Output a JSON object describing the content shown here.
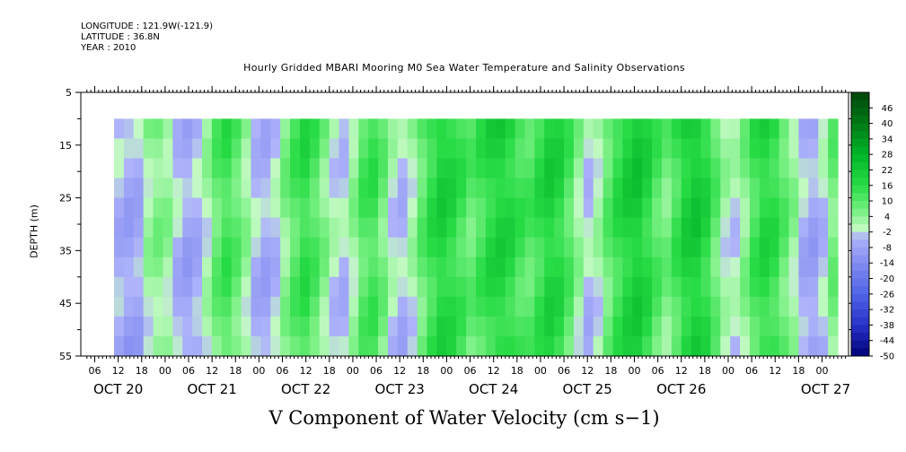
{
  "header": {
    "longitude": "LONGITUDE : 121.9W(-121.9)",
    "latitude": "LATITUDE : 36.8N",
    "year": "YEAR : 2010"
  },
  "chart_data": {
    "type": "heatmap",
    "title": "Hourly Gridded MBARI Mooring M0 Sea Water Temperature and Salinity Observations",
    "xlabel": "V Component of Water Velocity (cm s−1)",
    "ylabel": "DEPTH (m)",
    "ylim": [
      5,
      55
    ],
    "y_inverted": true,
    "y_ticks": [
      "5",
      "15",
      "25",
      "35",
      "45",
      "55"
    ],
    "data_depth_range": [
      10,
      55
    ],
    "x_hour_ticks": [
      "06",
      "12",
      "18",
      "00",
      "06",
      "12",
      "18",
      "00",
      "06",
      "12",
      "18",
      "00",
      "06",
      "12",
      "18",
      "00",
      "06",
      "12",
      "18",
      "00",
      "06",
      "12",
      "18",
      "00",
      "06",
      "12",
      "18",
      "00",
      "06",
      "12",
      "18",
      "00"
    ],
    "x_date_labels": [
      "OCT 20",
      "OCT 21",
      "OCT 22",
      "OCT 23",
      "OCT 24",
      "OCT 25",
      "OCT 26",
      "OCT 27"
    ],
    "colorbar": {
      "labels": [
        "46",
        "40",
        "34",
        "28",
        "22",
        "16",
        "10",
        "4",
        "-2",
        "-8",
        "-14",
        "-20",
        "-26",
        "-32",
        "-38",
        "-44",
        "-50"
      ],
      "range": [
        -50,
        52
      ],
      "step": 6
    },
    "column_values": [
      -4,
      -6,
      -5,
      3,
      6,
      4,
      -3,
      -6,
      -4,
      2,
      10,
      14,
      10,
      4,
      -3,
      -5,
      -2,
      6,
      12,
      16,
      12,
      6,
      0,
      -2,
      4,
      12,
      14,
      8,
      0,
      -3,
      2,
      10,
      16,
      20,
      18,
      14,
      10,
      14,
      18,
      20,
      18,
      14,
      12,
      16,
      20,
      18,
      12,
      4,
      -2,
      2,
      10,
      16,
      20,
      22,
      18,
      12,
      8,
      14,
      20,
      22,
      18,
      10,
      2,
      0,
      6,
      14,
      18,
      16,
      10,
      4,
      -4,
      -6,
      -2,
      8
    ]
  }
}
